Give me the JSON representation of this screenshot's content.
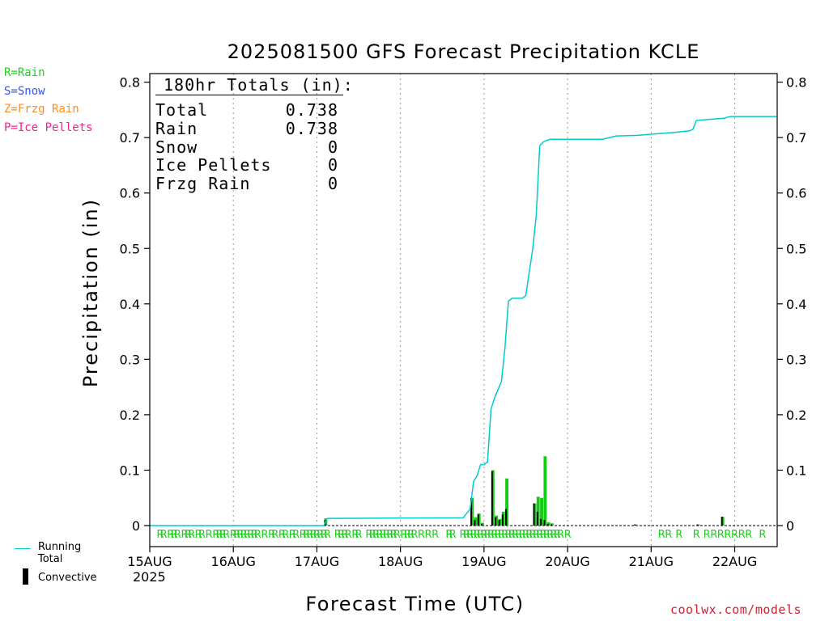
{
  "chart_data": {
    "type": "bar",
    "title": "2025081500 GFS Forecast Precipitation KCLE",
    "xlabel": "Forecast Time (UTC)",
    "ylabel": "Precipitation (in)",
    "ylim": [
      0,
      0.82
    ],
    "y_ticks": [
      "0",
      "0.1",
      "0.2",
      "0.3",
      "0.4",
      "0.5",
      "0.6",
      "0.7",
      "0.8"
    ],
    "x_ticks": [
      "15AUG",
      "16AUG",
      "17AUG",
      "18AUG",
      "19AUG",
      "20AUG",
      "21AUG",
      "22AUG"
    ],
    "x_year_label": "2025",
    "x_range_hours": [
      0,
      180
    ],
    "grid": "vertical dotted",
    "totals_box": {
      "header": "180hr Totals (in):",
      "rows": [
        {
          "label": "Total",
          "value": "0.738"
        },
        {
          "label": "Rain",
          "value": "0.738"
        },
        {
          "label": "Snow",
          "value": "0"
        },
        {
          "label": "Ice Pellets",
          "value": "0"
        },
        {
          "label": "Frzg Rain",
          "value": "0"
        }
      ]
    },
    "type_legend": [
      {
        "text": "R=Rain",
        "color": "#22cc22"
      },
      {
        "text": "S=Snow",
        "color": "#3355ee"
      },
      {
        "text": "Z=Frzg Rain",
        "color": "#ff8c1a"
      },
      {
        "text": "P=Ice Pellets",
        "color": "#ee2288"
      }
    ],
    "series_legend": [
      {
        "name": "Running Total",
        "color": "#00cccc"
      },
      {
        "name": "Convective",
        "color": "#000000"
      }
    ],
    "precip_hours": [
      51,
      93,
      94,
      95,
      96,
      99,
      100,
      101,
      102,
      103,
      111,
      112,
      113,
      114,
      115,
      116,
      140,
      158,
      165
    ],
    "precip_values": [
      0.013,
      0.05,
      0.015,
      0.022,
      0.005,
      0.1,
      0.018,
      0.012,
      0.025,
      0.085,
      0.04,
      0.052,
      0.05,
      0.125,
      0.006,
      0.004,
      0.002,
      0.002,
      0.016
    ],
    "convective_values": [
      0.01,
      0.05,
      0.01,
      0.02,
      0.003,
      0.098,
      0.015,
      0.01,
      0.02,
      0.03,
      0.04,
      0.025,
      0.012,
      0.01,
      0.003,
      0.002,
      0.002,
      0.002,
      0.016
    ],
    "running_total_hours": [
      0,
      50,
      51,
      90,
      92,
      93,
      94,
      95,
      96,
      97,
      98,
      99,
      100,
      101,
      102,
      103,
      104,
      105,
      107,
      108,
      110,
      111,
      112,
      113,
      114,
      115,
      117,
      120,
      130,
      134,
      140,
      144,
      150,
      155,
      156,
      157,
      165,
      166,
      167,
      180
    ],
    "running_total_values": [
      0,
      0,
      0.013,
      0.014,
      0.03,
      0.08,
      0.09,
      0.11,
      0.11,
      0.115,
      0.21,
      0.23,
      0.245,
      0.26,
      0.32,
      0.405,
      0.41,
      0.41,
      0.41,
      0.415,
      0.5,
      0.56,
      0.685,
      0.692,
      0.695,
      0.697,
      0.697,
      0.697,
      0.697,
      0.703,
      0.704,
      0.706,
      0.709,
      0.712,
      0.715,
      0.731,
      0.735,
      0.737,
      0.738,
      0.738
    ],
    "rain_marker_hours": [
      3,
      4,
      6,
      7,
      8,
      10,
      11,
      12,
      14,
      15,
      17,
      19,
      20,
      21,
      22,
      24,
      25,
      26,
      27,
      28,
      29,
      30,
      31,
      33,
      35,
      36,
      38,
      39,
      41,
      42,
      44,
      45,
      46,
      47,
      48,
      49,
      50,
      51,
      54,
      55,
      56,
      57,
      59,
      60,
      63,
      64,
      65,
      66,
      67,
      68,
      69,
      70,
      71,
      73,
      74,
      75,
      76,
      78,
      80,
      82,
      86,
      87,
      90,
      91,
      92,
      93,
      94,
      95,
      96,
      97,
      98,
      99,
      100,
      101,
      102,
      103,
      104,
      105,
      106,
      107,
      108,
      109,
      110,
      111,
      112,
      113,
      114,
      115,
      116,
      117,
      118,
      120,
      147,
      149,
      152,
      157,
      160,
      162,
      164,
      166,
      168,
      170,
      172,
      176,
      181
    ],
    "rain_marker_label": "R",
    "credit": "coolwx.com/models"
  }
}
